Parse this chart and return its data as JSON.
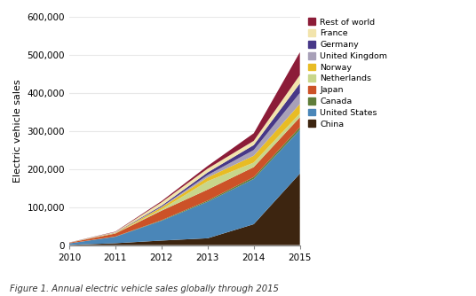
{
  "years": [
    2010,
    2011,
    2012,
    2013,
    2014,
    2015
  ],
  "series": {
    "China": [
      500,
      5000,
      12000,
      18000,
      55000,
      188000
    ],
    "United States": [
      4000,
      17000,
      52000,
      96000,
      119000,
      115000
    ],
    "Canada": [
      100,
      500,
      1500,
      3000,
      5000,
      7000
    ],
    "Japan": [
      1500,
      8000,
      25000,
      29000,
      26000,
      26000
    ],
    "Netherlands": [
      100,
      500,
      3500,
      22000,
      12000,
      10000
    ],
    "Norway": [
      200,
      1000,
      5000,
      10000,
      18000,
      25000
    ],
    "United Kingdom": [
      100,
      500,
      1500,
      6000,
      15000,
      29000
    ],
    "Germany": [
      100,
      500,
      3000,
      7000,
      13000,
      25000
    ],
    "France": [
      200,
      1500,
      9000,
      10000,
      11000,
      22000
    ],
    "Rest of world": [
      200,
      1000,
      3000,
      7000,
      20000,
      60000
    ]
  },
  "stack_order": [
    "China",
    "United States",
    "Canada",
    "Japan",
    "Netherlands",
    "Norway",
    "United Kingdom",
    "Germany",
    "France",
    "Rest of world"
  ],
  "colors": {
    "China": "#3d2510",
    "United States": "#4a86b8",
    "Canada": "#5f7d3a",
    "Japan": "#cc5228",
    "Netherlands": "#c8d68a",
    "Norway": "#e8bc24",
    "United Kingdom": "#a8a0b8",
    "Germany": "#473888",
    "France": "#f2e4ac",
    "Rest of world": "#8c1c38"
  },
  "ylabel": "Electric vehicle sales",
  "ylim": [
    0,
    600000
  ],
  "yticks": [
    0,
    100000,
    200000,
    300000,
    400000,
    500000,
    600000
  ],
  "ytick_labels": [
    "0",
    "100,000",
    "200,000",
    "300,000",
    "400,000",
    "500,000",
    "600,000"
  ],
  "xlim": [
    2010,
    2015
  ],
  "xticks": [
    2010,
    2011,
    2012,
    2013,
    2014,
    2015
  ],
  "caption": "Figure 1. Annual electric vehicle sales globally through 2015",
  "bg_color": "#ffffff",
  "grid_color": "#e8e8e8",
  "legend_order": [
    "Rest of world",
    "France",
    "Germany",
    "United Kingdom",
    "Norway",
    "Netherlands",
    "Japan",
    "Canada",
    "United States",
    "China"
  ]
}
